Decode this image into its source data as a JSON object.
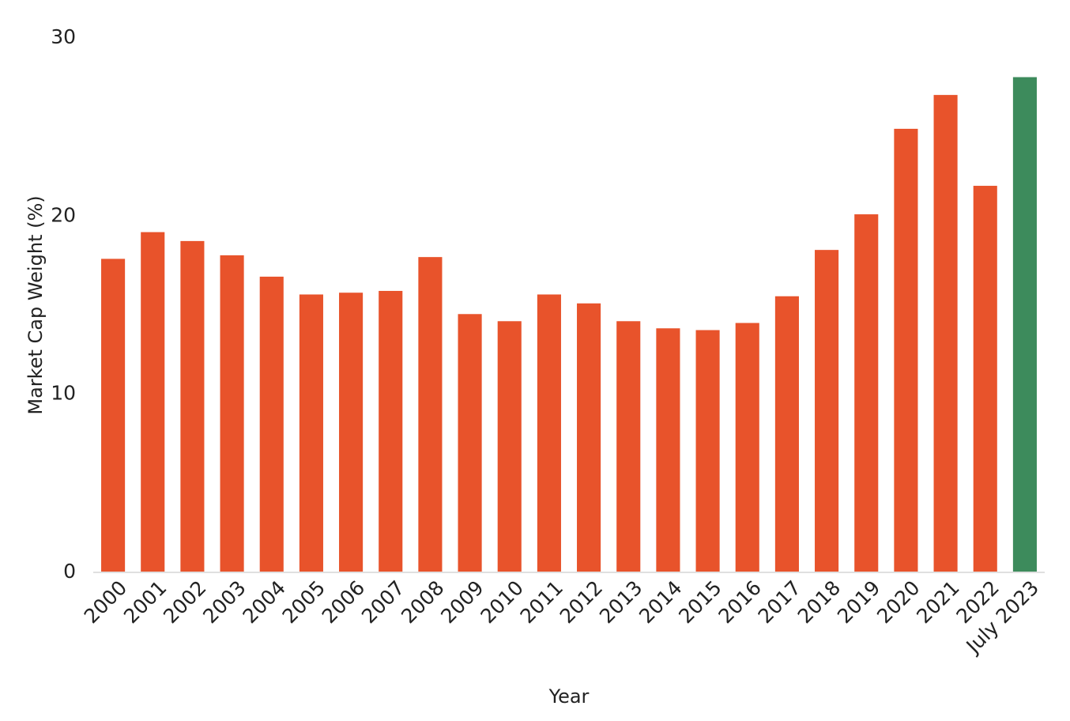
{
  "chart_data": {
    "type": "bar",
    "title": "",
    "xlabel": "Year",
    "ylabel": "Market Cap Weight (%)",
    "ylim": [
      0,
      30
    ],
    "yticks": [
      0,
      10,
      20,
      30
    ],
    "grid": false,
    "legend": "none",
    "categories": [
      "2000",
      "2001",
      "2002",
      "2003",
      "2004",
      "2005",
      "2006",
      "2007",
      "2008",
      "2009",
      "2010",
      "2011",
      "2012",
      "2013",
      "2014",
      "2015",
      "2016",
      "2017",
      "2018",
      "2019",
      "2020",
      "2021",
      "2022",
      "July 2023"
    ],
    "values": [
      17.6,
      19.1,
      18.6,
      17.8,
      16.6,
      15.6,
      15.7,
      15.8,
      17.7,
      14.5,
      14.1,
      15.6,
      15.1,
      14.1,
      13.7,
      13.6,
      14.0,
      15.5,
      18.1,
      20.1,
      24.9,
      26.8,
      21.7,
      27.8
    ],
    "colors": {
      "default_bar": "#e8532b",
      "highlight_bar": "#3d8b5c",
      "baseline": "#e0e0e0"
    },
    "highlight_index": 23
  }
}
